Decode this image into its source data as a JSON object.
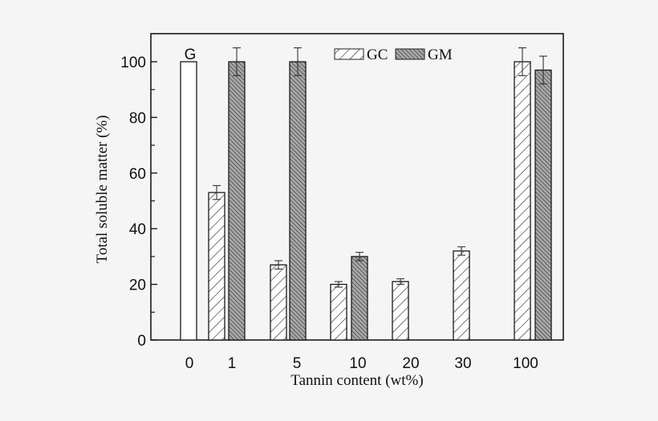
{
  "chart_data": {
    "type": "bar",
    "title": "",
    "xlabel": "Tannin content (wt%)",
    "ylabel": "Total soluble matter (%)",
    "ylim": [
      0,
      110
    ],
    "yticks": [
      0,
      20,
      40,
      60,
      80,
      100
    ],
    "yminor_ticks": [
      10,
      30,
      50,
      70,
      90
    ],
    "categories": [
      "0",
      "1",
      "5",
      "10",
      "20",
      "30",
      "100"
    ],
    "grid": false,
    "legend_position": "top-center",
    "annotations": [
      {
        "text": "G",
        "category": "0",
        "y": 100
      }
    ],
    "series": [
      {
        "name": "G",
        "pattern": "open",
        "values": [
          100,
          null,
          null,
          null,
          null,
          null,
          null
        ],
        "errors": [
          null,
          null,
          null,
          null,
          null,
          null,
          null
        ]
      },
      {
        "name": "GC",
        "pattern": "sparse-forward-hatch",
        "values": [
          null,
          53,
          27,
          20,
          21,
          32,
          100
        ],
        "errors": [
          null,
          2.5,
          1.5,
          1,
          1,
          1.5,
          5
        ]
      },
      {
        "name": "GM",
        "pattern": "dense-back-hatch-grey",
        "values": [
          null,
          100,
          100,
          30,
          null,
          null,
          97
        ],
        "errors": [
          null,
          5,
          5,
          1.5,
          null,
          null,
          5
        ]
      }
    ]
  },
  "legend": {
    "items": [
      {
        "label": "GC"
      },
      {
        "label": "GM"
      }
    ]
  },
  "annotation_G": "G",
  "axis": {
    "xlabel": "Tannin content (wt%)",
    "ylabel": "Total soluble matter (%)"
  }
}
